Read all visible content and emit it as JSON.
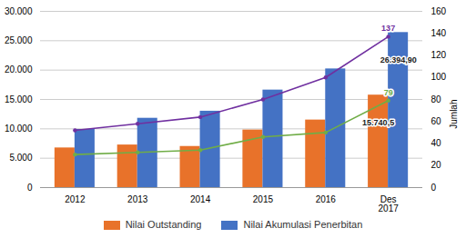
{
  "chart_data": {
    "type": "bar",
    "categories": [
      "2012",
      "2013",
      "2014",
      "2015",
      "2016",
      "Des\n2017"
    ],
    "series": [
      {
        "name": "Nilai Outstanding",
        "type": "bar",
        "color": "#E8722A",
        "values": [
          6750,
          7250,
          7000,
          9800,
          11500,
          15740.5
        ]
      },
      {
        "name": "Nilai Akumulasi Penerbitan",
        "type": "bar",
        "color": "#4472C4",
        "values": [
          9900,
          11800,
          13000,
          16600,
          20200,
          26394.9
        ]
      },
      {
        "type": "line",
        "axis": "y2",
        "color": "#70AD47",
        "marker": "circle",
        "values": [
          30,
          32,
          34,
          46,
          50,
          79
        ]
      },
      {
        "type": "line",
        "axis": "y2",
        "color": "#7030A0",
        "marker": "circle",
        "values": [
          52,
          58,
          64,
          80,
          100,
          137
        ]
      }
    ],
    "ylim": [
      0,
      30000
    ],
    "yticks": [
      0,
      {
        "value": 5000,
        "label": "5.000"
      },
      {
        "value": 10000,
        "label": "10.000"
      },
      {
        "value": 15000,
        "label": "15.000"
      },
      {
        "value": 20000,
        "label": "20.000"
      },
      {
        "value": 25000,
        "label": "25.000"
      },
      {
        "value": 30000,
        "label": "30.000"
      }
    ],
    "y2lim": [
      0,
      160
    ],
    "y2ticks": [
      0,
      20,
      40,
      60,
      80,
      100,
      120,
      140,
      160
    ],
    "y2label": "Jumlah",
    "annotations": [
      "15.740,5",
      "26.394,90",
      "79",
      "137"
    ],
    "grid": true,
    "legend": "bottom"
  }
}
